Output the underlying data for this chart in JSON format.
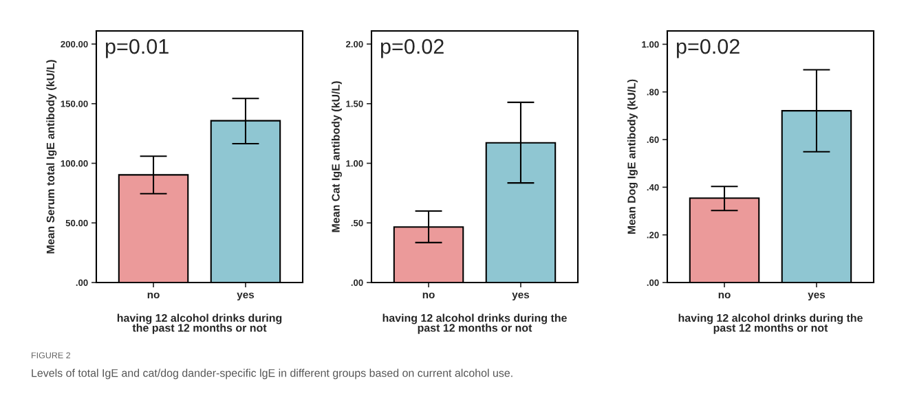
{
  "chart_data": [
    {
      "type": "bar",
      "categories": [
        "no",
        "yes"
      ],
      "values": [
        90.3,
        135.7
      ],
      "colors": [
        "#eb9a9a",
        "#8fc6d2"
      ],
      "errors": [
        [
          74.5,
          105.9
        ],
        [
          116.5,
          154.4
        ]
      ],
      "ylabel": "Mean Serum total IgE antibody (kU/L)",
      "xlabel": "having 12 alcohol drinks during\nthe past 12 months or not",
      "ylim": [
        0,
        211
      ],
      "yticks": [
        {
          "value": 0,
          "label": ".00"
        },
        {
          "value": 50,
          "label": "50.00"
        },
        {
          "value": 100,
          "label": "100.00"
        },
        {
          "value": 150,
          "label": "150.00"
        },
        {
          "value": 200,
          "label": "200.00"
        }
      ],
      "annotations": [
        "p=0.01",
        "FIGURE 2",
        "Levels of total IgE and cat/dog dander-specific lgE in different groups based on current alcohol use."
      ]
    },
    {
      "type": "bar",
      "categories": [
        "no",
        "yes"
      ],
      "values": [
        0.466,
        1.172
      ],
      "colors": [
        "#eb9a9a",
        "#8fc6d2"
      ],
      "errors": [
        [
          0.335,
          0.6
        ],
        [
          0.835,
          1.511
        ]
      ],
      "ylabel": "Mean Cat IgE antibody (kU/L)",
      "xlabel": "having 12 alcohol drinks during the\npast 12 months or not",
      "ylim": [
        0,
        2.11
      ],
      "yticks": [
        {
          "value": 0,
          "label": ".00"
        },
        {
          "value": 0.5,
          "label": ".50"
        },
        {
          "value": 1,
          "label": "1.00"
        },
        {
          "value": 1.5,
          "label": "1.50"
        },
        {
          "value": 2,
          "label": "2.00"
        }
      ],
      "annotations": [
        "p=0.02"
      ]
    },
    {
      "type": "bar",
      "categories": [
        "no",
        "yes"
      ],
      "values": [
        0.354,
        0.721
      ],
      "colors": [
        "#eb9a9a",
        "#8fc6d2"
      ],
      "errors": [
        [
          0.302,
          0.403
        ],
        [
          0.549,
          0.893
        ]
      ],
      "ylabel": "Mean Dog IgE antibody (kU/L)",
      "xlabel": "having 12 alcohol drinks during the\npast 12 months or not",
      "ylim": [
        0,
        1.056
      ],
      "yticks": [
        {
          "value": 0,
          "label": ".00"
        },
        {
          "value": 0.2,
          "label": ".20"
        },
        {
          "value": 0.4,
          "label": ".40"
        },
        {
          "value": 0.6,
          "label": ".60"
        },
        {
          "value": 0.8,
          "label": ".80"
        },
        {
          "value": 1,
          "label": "1.00"
        }
      ],
      "annotations": [
        "p=0.02"
      ]
    }
  ]
}
